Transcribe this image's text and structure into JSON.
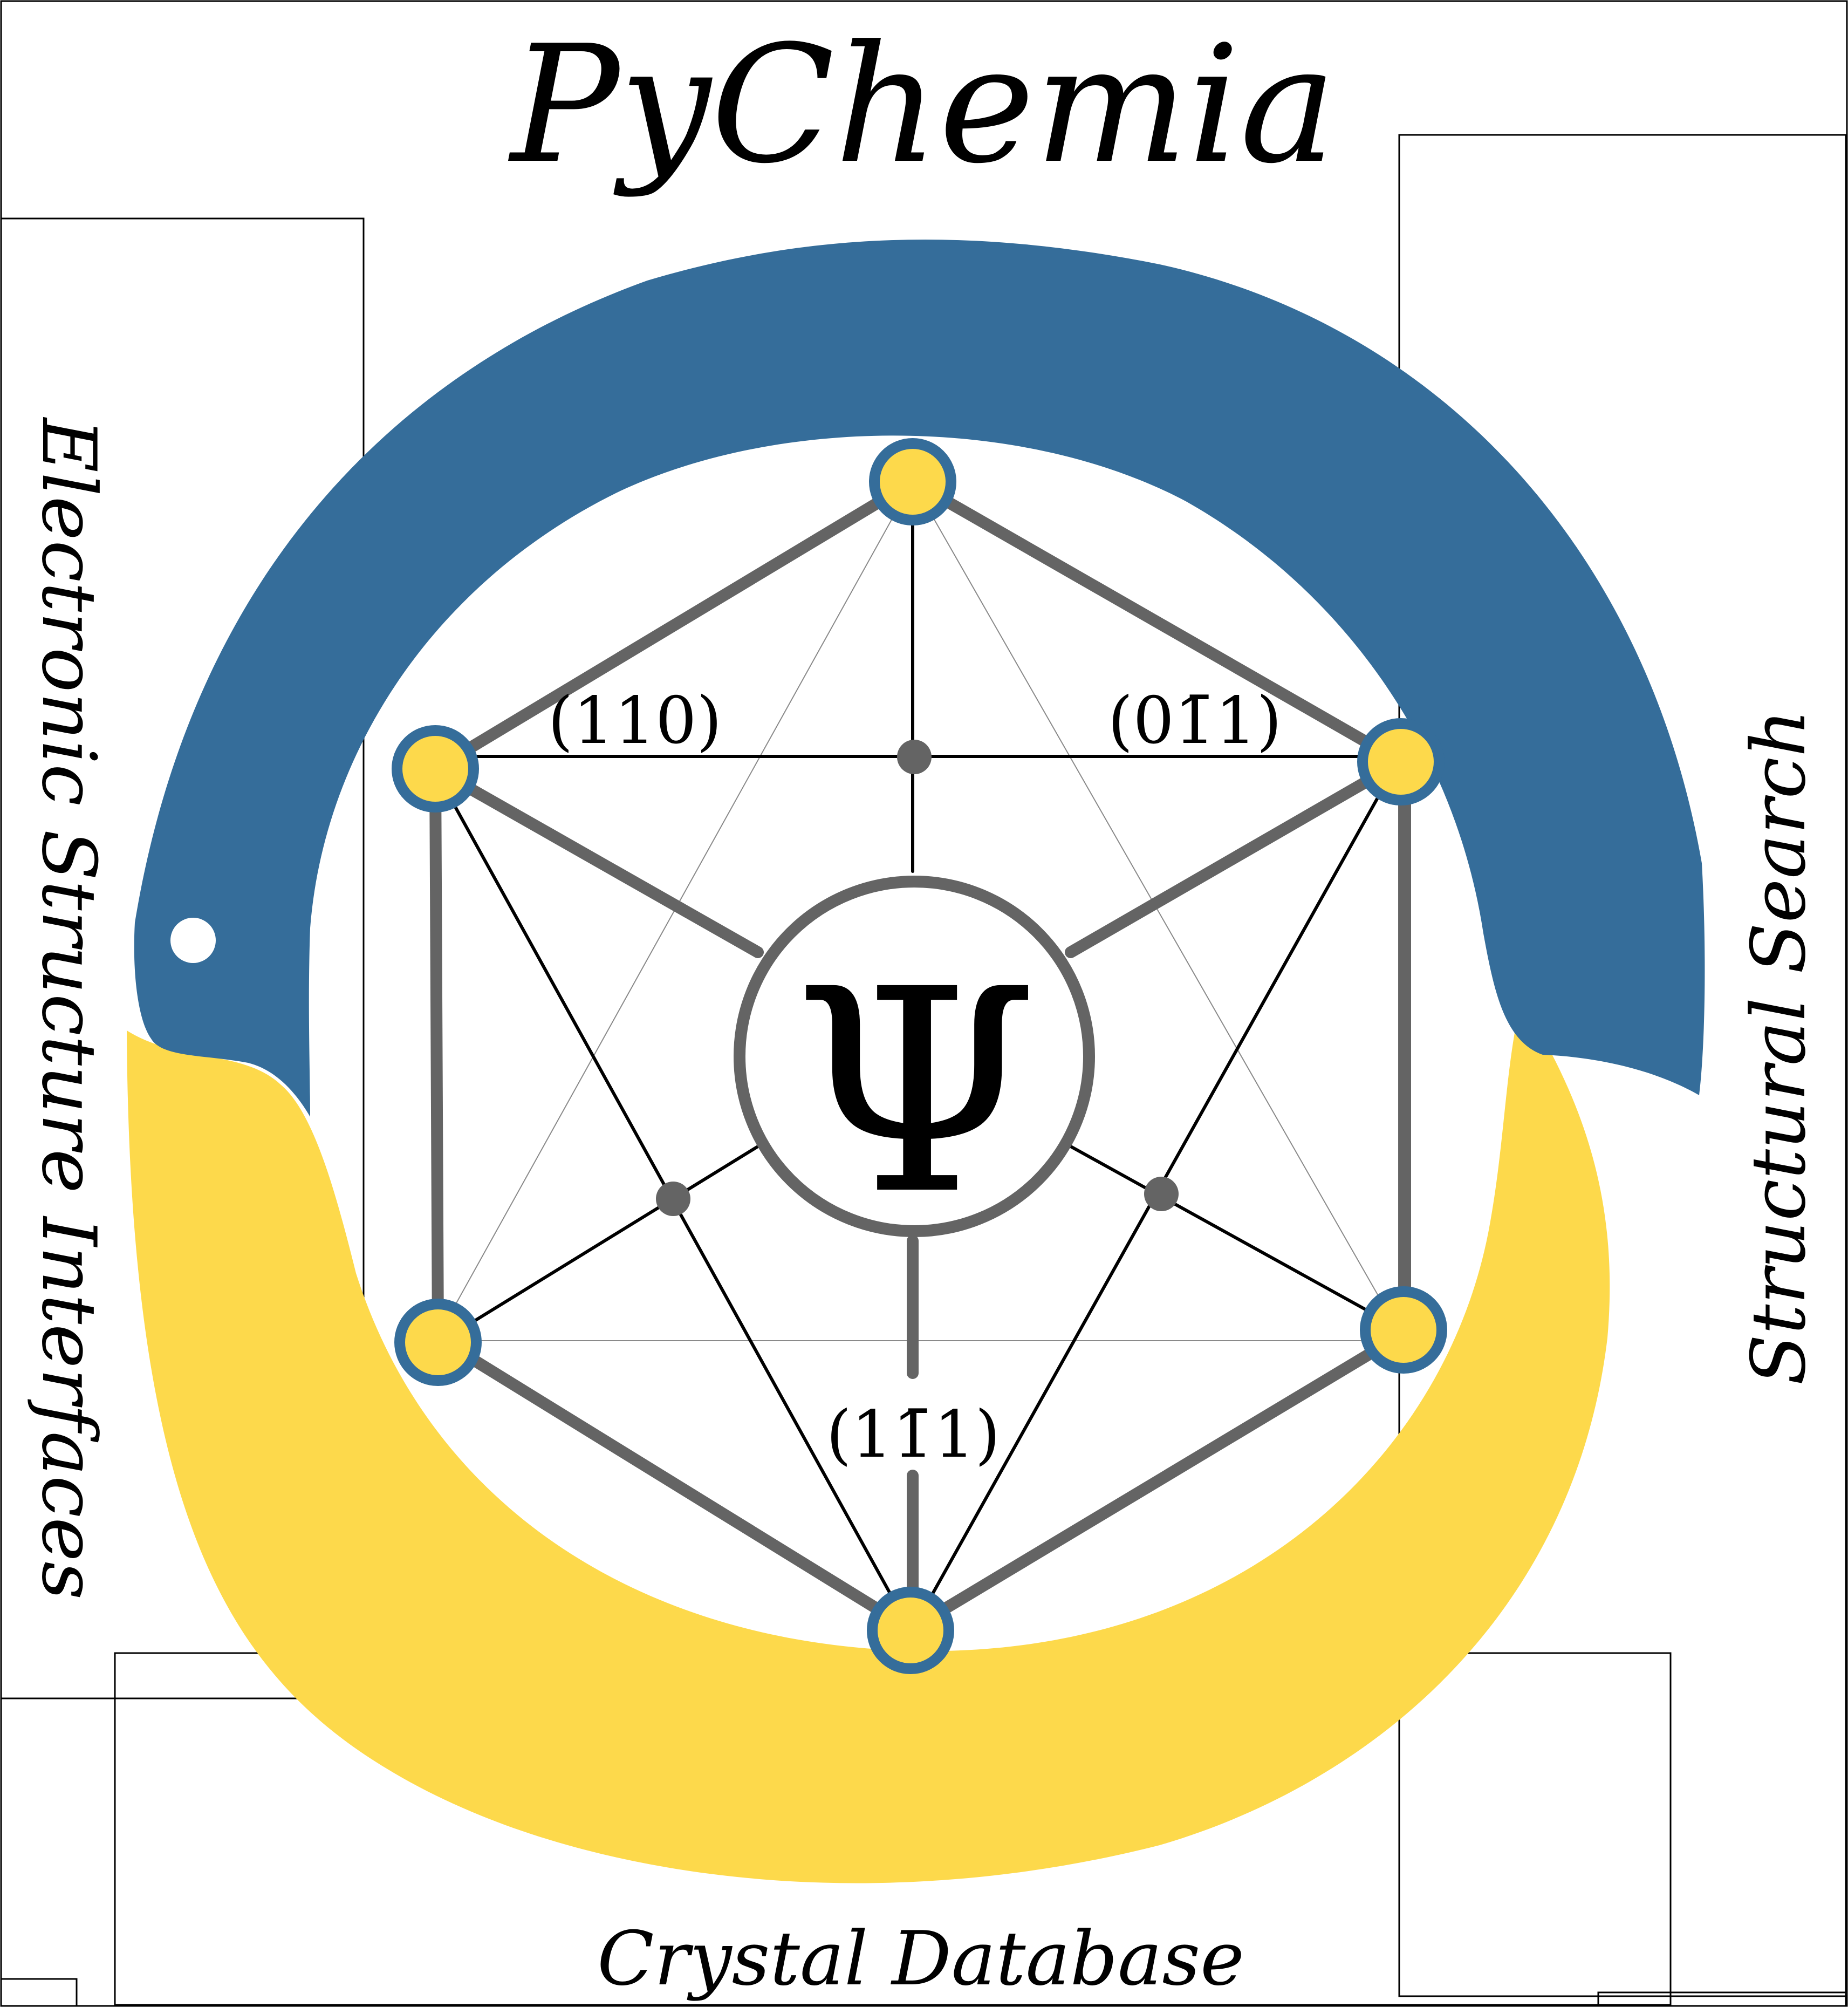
{
  "title": "PyChemia",
  "labels": {
    "left": "Electronic Structure Interfaces",
    "right": "Structural Search",
    "bottom": "Crystal Database"
  },
  "center_symbol": "Ψ",
  "miller_indices": {
    "upper_left": "(110)",
    "upper_right": "(01̄1)",
    "lower": "(11̄1)"
  },
  "colors": {
    "blue": "#356d9a",
    "yellow": "#fdd94b",
    "gray": "#646464",
    "black": "#000000",
    "background": "#ffffff"
  }
}
